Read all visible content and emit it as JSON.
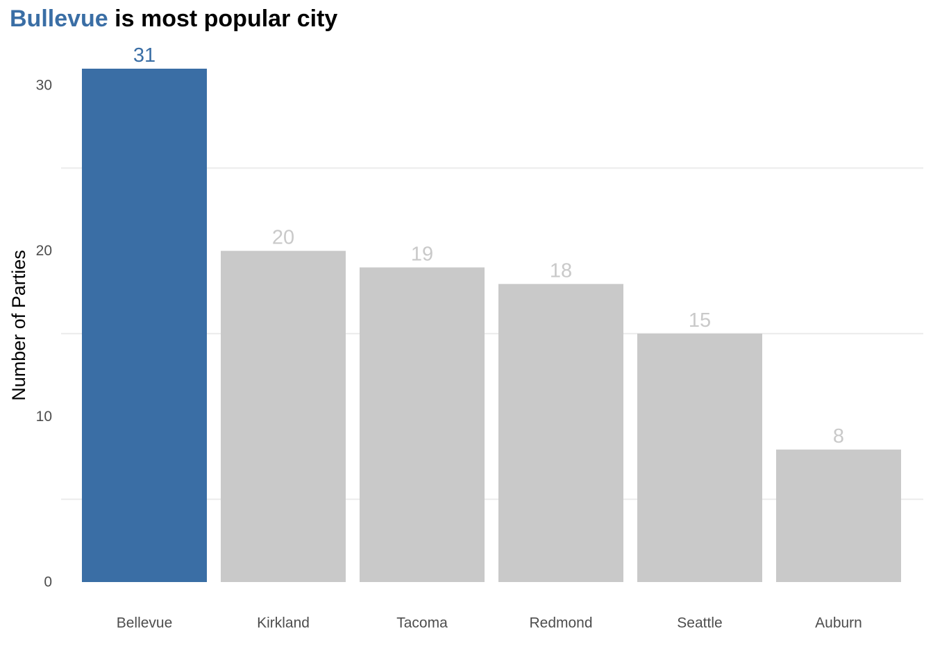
{
  "chart_data": {
    "type": "bar",
    "title": {
      "highlight": "Bullevue",
      "rest": " is most popular city"
    },
    "xlabel": "",
    "ylabel": "Number of Parties",
    "categories": [
      "Bellevue",
      "Kirkland",
      "Tacoma",
      "Redmond",
      "Seattle",
      "Auburn"
    ],
    "values": [
      31,
      20,
      19,
      18,
      15,
      8
    ],
    "data_labels": [
      "31",
      "20",
      "19",
      "18",
      "15",
      "8"
    ],
    "highlight_index": 0,
    "ylim": [
      0,
      31
    ],
    "y_ticks": [
      0,
      10,
      20,
      30
    ],
    "y_tick_labels": [
      "0",
      "10",
      "20",
      "30"
    ],
    "y_minor_gridlines": [
      5,
      15,
      25
    ],
    "grid": "minor-horizontal",
    "legend": "none",
    "colors": {
      "highlight": "#3A6EA5",
      "default": "#C9C9C9",
      "highlight_label": "#3A6EA5",
      "default_label": "#C9C9C9"
    }
  }
}
